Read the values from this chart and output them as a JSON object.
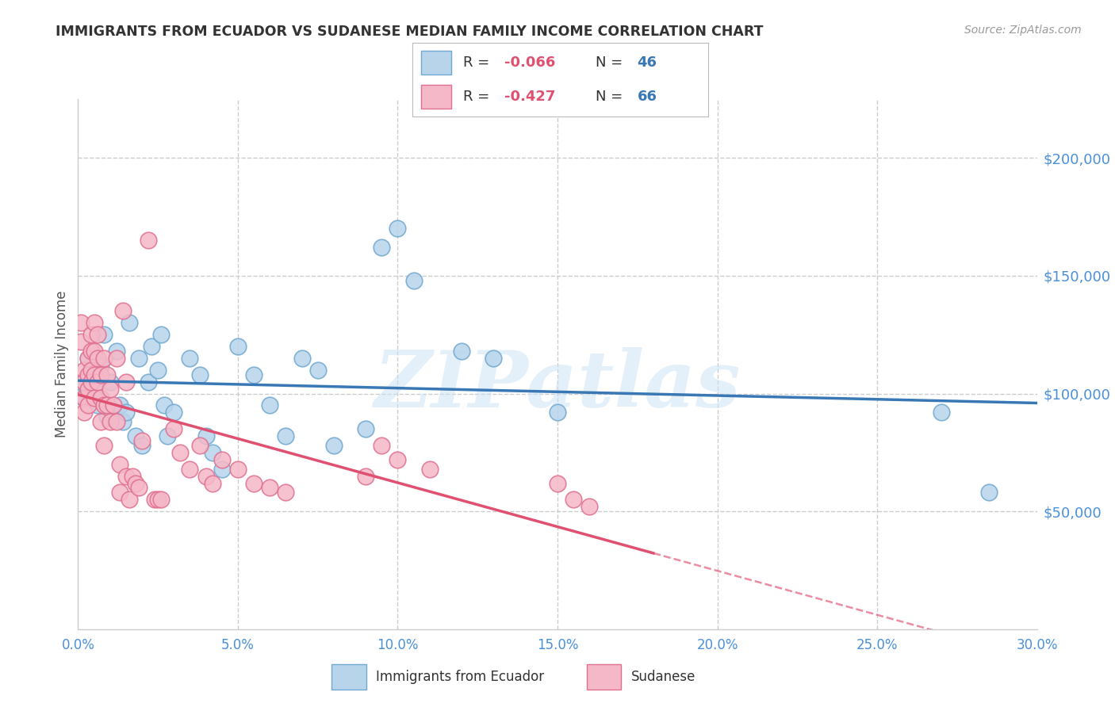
{
  "title": "IMMIGRANTS FROM ECUADOR VS SUDANESE MEDIAN FAMILY INCOME CORRELATION CHART",
  "source": "Source: ZipAtlas.com",
  "ylabel": "Median Family Income",
  "xlim": [
    0.0,
    0.3
  ],
  "ylim": [
    0,
    225000
  ],
  "xtick_vals": [
    0.0,
    0.05,
    0.1,
    0.15,
    0.2,
    0.25,
    0.3
  ],
  "xtick_labels": [
    "0.0%",
    "5.0%",
    "10.0%",
    "15.0%",
    "20.0%",
    "25.0%",
    "30.0%"
  ],
  "ytick_vals": [
    50000,
    100000,
    150000,
    200000
  ],
  "ytick_labels": [
    "$50,000",
    "$100,000",
    "$150,000",
    "$200,000"
  ],
  "ecuador_fill": "#b8d4eb",
  "ecuador_edge": "#6fa8d0",
  "sudanese_fill": "#f5b8c8",
  "sudanese_edge": "#e07090",
  "line_ecuador": "#3a78b5",
  "line_sudanese": "#e05070",
  "grid_color": "#cccccc",
  "watermark": "ZIPatlas",
  "r_ecuador": "-0.066",
  "n_ecuador": "46",
  "r_sudanese": "-0.427",
  "n_sudanese": "66",
  "ecuador_x": [
    0.001,
    0.002,
    0.003,
    0.004,
    0.005,
    0.006,
    0.007,
    0.008,
    0.009,
    0.01,
    0.012,
    0.013,
    0.014,
    0.015,
    0.016,
    0.018,
    0.019,
    0.02,
    0.022,
    0.023,
    0.025,
    0.026,
    0.027,
    0.028,
    0.03,
    0.035,
    0.038,
    0.04,
    0.042,
    0.045,
    0.05,
    0.055,
    0.06,
    0.065,
    0.07,
    0.075,
    0.08,
    0.09,
    0.095,
    0.1,
    0.105,
    0.12,
    0.13,
    0.15,
    0.27,
    0.285
  ],
  "ecuador_y": [
    105000,
    98000,
    115000,
    108000,
    102000,
    95000,
    112000,
    125000,
    90000,
    105000,
    118000,
    95000,
    88000,
    92000,
    130000,
    82000,
    115000,
    78000,
    105000,
    120000,
    110000,
    125000,
    95000,
    82000,
    92000,
    115000,
    108000,
    82000,
    75000,
    68000,
    120000,
    108000,
    95000,
    82000,
    115000,
    110000,
    78000,
    85000,
    162000,
    170000,
    148000,
    118000,
    115000,
    92000,
    92000,
    58000
  ],
  "sudanese_x": [
    0.001,
    0.001,
    0.002,
    0.002,
    0.002,
    0.002,
    0.003,
    0.003,
    0.003,
    0.003,
    0.004,
    0.004,
    0.004,
    0.004,
    0.005,
    0.005,
    0.005,
    0.005,
    0.006,
    0.006,
    0.006,
    0.007,
    0.007,
    0.007,
    0.008,
    0.008,
    0.008,
    0.009,
    0.009,
    0.01,
    0.01,
    0.011,
    0.012,
    0.012,
    0.013,
    0.013,
    0.014,
    0.015,
    0.015,
    0.016,
    0.017,
    0.018,
    0.019,
    0.02,
    0.022,
    0.024,
    0.025,
    0.026,
    0.03,
    0.032,
    0.035,
    0.038,
    0.04,
    0.042,
    0.045,
    0.05,
    0.055,
    0.06,
    0.065,
    0.09,
    0.095,
    0.1,
    0.11,
    0.15,
    0.155,
    0.16
  ],
  "sudanese_y": [
    130000,
    122000,
    110000,
    105000,
    98000,
    92000,
    115000,
    108000,
    102000,
    95000,
    125000,
    118000,
    110000,
    105000,
    130000,
    118000,
    108000,
    98000,
    125000,
    115000,
    105000,
    108000,
    98000,
    88000,
    115000,
    95000,
    78000,
    108000,
    95000,
    102000,
    88000,
    95000,
    115000,
    88000,
    70000,
    58000,
    135000,
    105000,
    65000,
    55000,
    65000,
    62000,
    60000,
    80000,
    165000,
    55000,
    55000,
    55000,
    85000,
    75000,
    68000,
    78000,
    65000,
    62000,
    72000,
    68000,
    62000,
    60000,
    58000,
    65000,
    78000,
    72000,
    68000,
    62000,
    55000,
    52000
  ]
}
